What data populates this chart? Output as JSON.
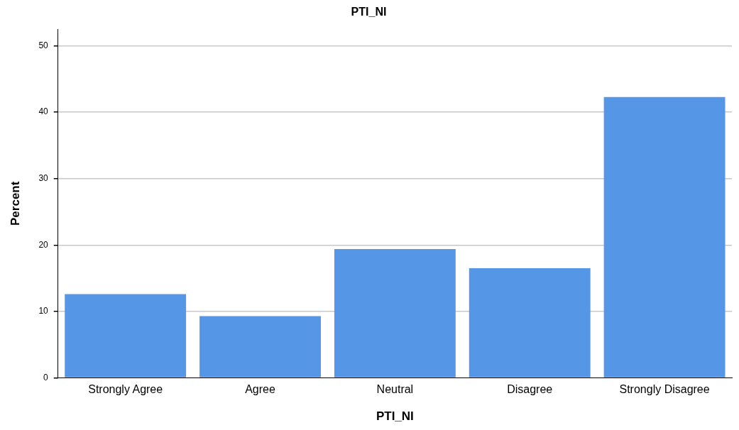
{
  "chart_data": {
    "type": "bar",
    "title": "PTI_NI",
    "xlabel": "PTI_NI",
    "ylabel": "Percent",
    "categories": [
      "Strongly Agree",
      "Agree",
      "Neutral",
      "Disagree",
      "Strongly Disagree"
    ],
    "values": [
      12.6,
      9.3,
      19.4,
      16.5,
      42.3
    ],
    "color": "#5596e6",
    "ylim": [
      0,
      52.5
    ],
    "yticks": [
      0,
      10,
      20,
      30,
      40,
      50
    ],
    "grid": "y",
    "legend": false
  }
}
